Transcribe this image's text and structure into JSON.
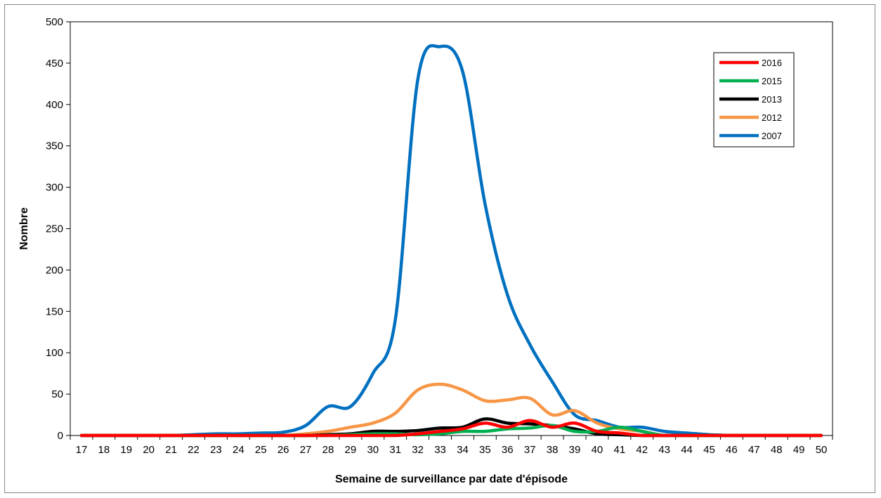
{
  "chart_data": {
    "type": "line",
    "title": "",
    "xlabel": "Semaine de surveillance par date d'épisode",
    "ylabel": "Nombre",
    "ylim": [
      0,
      500
    ],
    "yticks": [
      0,
      50,
      100,
      150,
      200,
      250,
      300,
      350,
      400,
      450,
      500
    ],
    "categories": [
      17,
      18,
      19,
      20,
      21,
      22,
      23,
      24,
      25,
      26,
      27,
      28,
      29,
      30,
      31,
      32,
      33,
      34,
      35,
      36,
      37,
      38,
      39,
      40,
      41,
      42,
      43,
      44,
      45,
      46,
      47,
      48,
      49,
      50
    ],
    "grid": false,
    "legend_position": "top-right",
    "series": [
      {
        "name": "2016",
        "color": "#ff0000",
        "values": [
          0,
          0,
          0,
          0,
          0,
          0,
          0,
          0,
          0,
          0,
          0,
          0,
          0,
          0,
          0,
          2,
          5,
          8,
          15,
          10,
          18,
          10,
          15,
          5,
          3,
          0,
          0,
          0,
          0,
          0,
          0,
          0,
          0,
          0
        ]
      },
      {
        "name": "2015",
        "color": "#00b050",
        "values": [
          0,
          0,
          0,
          0,
          0,
          0,
          0,
          0,
          0,
          0,
          0,
          0,
          1,
          2,
          2,
          1,
          2,
          5,
          5,
          8,
          9,
          12,
          5,
          5,
          10,
          5,
          0,
          0,
          0,
          0,
          0,
          0,
          0,
          0
        ]
      },
      {
        "name": "2013",
        "color": "#000000",
        "values": [
          0,
          0,
          0,
          0,
          0,
          0,
          0,
          0,
          0,
          0,
          0,
          1,
          2,
          5,
          5,
          6,
          9,
          10,
          20,
          15,
          14,
          12,
          8,
          2,
          1,
          0,
          0,
          0,
          0,
          0,
          0,
          0,
          0,
          0
        ]
      },
      {
        "name": "2012",
        "color": "#f79646",
        "values": [
          0,
          0,
          0,
          0,
          0,
          0,
          0,
          0,
          0,
          0,
          2,
          5,
          10,
          15,
          27,
          55,
          62,
          55,
          42,
          43,
          45,
          25,
          30,
          15,
          8,
          5,
          0,
          0,
          0,
          0,
          0,
          0,
          0,
          0
        ]
      },
      {
        "name": "2007",
        "color": "#0070c0",
        "values": [
          0,
          0,
          0,
          0,
          0,
          1,
          2,
          2,
          3,
          4,
          12,
          35,
          35,
          75,
          140,
          430,
          470,
          440,
          280,
          170,
          110,
          65,
          25,
          18,
          10,
          10,
          5,
          3,
          1,
          0,
          0,
          0,
          0,
          0
        ]
      }
    ]
  }
}
